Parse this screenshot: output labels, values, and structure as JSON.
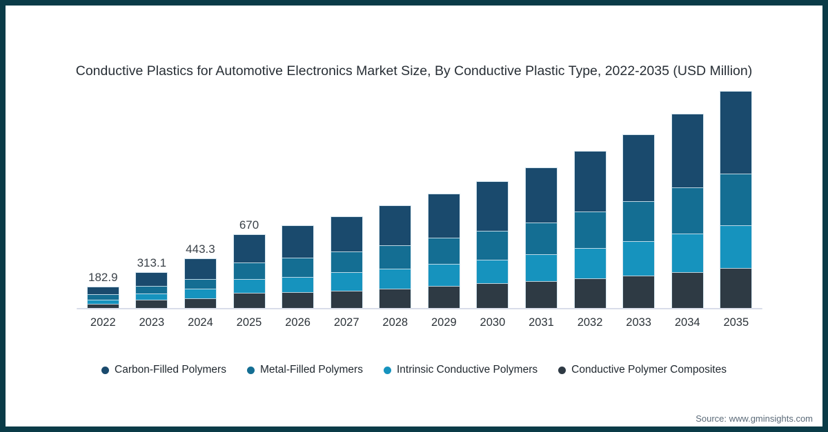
{
  "title": "Conductive Plastics for Automotive Electronics Market Size, By Conductive Plastic Type, 2022-2035 (USD Million)",
  "source": "Source: www.gminsights.com",
  "colors": {
    "frame_border": "#0a3b47",
    "axis_line": "#d9dde9",
    "carbon_filled": "#1a4a6d",
    "metal_filled": "#146e93",
    "intrinsic_conductive": "#1693be",
    "polymer_composites": "#2e3a44"
  },
  "chart_data": {
    "type": "bar",
    "stacked": true,
    "title": "Conductive Plastics for Automotive Electronics Market Size, By Conductive Plastic Type, 2022-2035 (USD Million)",
    "unit": "USD Million",
    "categories": [
      "2022",
      "2023",
      "2024",
      "2025",
      "2026",
      "2027",
      "2028",
      "2029",
      "2030",
      "2031",
      "2032",
      "2033",
      "2034",
      "2035"
    ],
    "series": [
      {
        "name": "Carbon-Filled Polymers",
        "color": "#1a4a6d",
        "values": [
          62,
          122,
          186,
          259,
          295,
          321,
          368,
          404,
          454,
          507,
          557,
          616,
          679,
          764
        ]
      },
      {
        "name": "Metal-Filled Polymers",
        "color": "#146e93",
        "values": [
          47,
          64,
          82,
          148,
          171,
          184,
          209,
          238,
          261,
          291,
          331,
          368,
          424,
          475
        ]
      },
      {
        "name": "Intrinsic Conductive Polymers",
        "color": "#1693be",
        "values": [
          35,
          53,
          85,
          120,
          133,
          165,
          180,
          196,
          209,
          246,
          276,
          317,
          353,
          392
        ]
      },
      {
        "name": "Conductive Polymer Composites",
        "color": "#2e3a44",
        "values": [
          39,
          74,
          90,
          143,
          150,
          160,
          178,
          204,
          231,
          250,
          274,
          304,
          336,
          372
        ]
      }
    ],
    "stack_order_bottom_to_top": [
      "Conductive Polymer Composites",
      "Intrinsic Conductive Polymers",
      "Metal-Filled Polymers",
      "Carbon-Filled Polymers"
    ],
    "totals": [
      182.9,
      313.1,
      443.3,
      670,
      749,
      830,
      935,
      1042,
      1155,
      1294,
      1438,
      1605,
      1792,
      2003
    ],
    "bar_labels": [
      "182.9",
      "313.1",
      "443.3",
      "670",
      "",
      "",
      "",
      "",
      "",
      "",
      "",
      "",
      "",
      ""
    ],
    "xlabel": "",
    "ylabel": "",
    "y_axis": "hidden",
    "grid": false,
    "ylim": [
      0,
      2120
    ],
    "legend_position": "bottom"
  }
}
